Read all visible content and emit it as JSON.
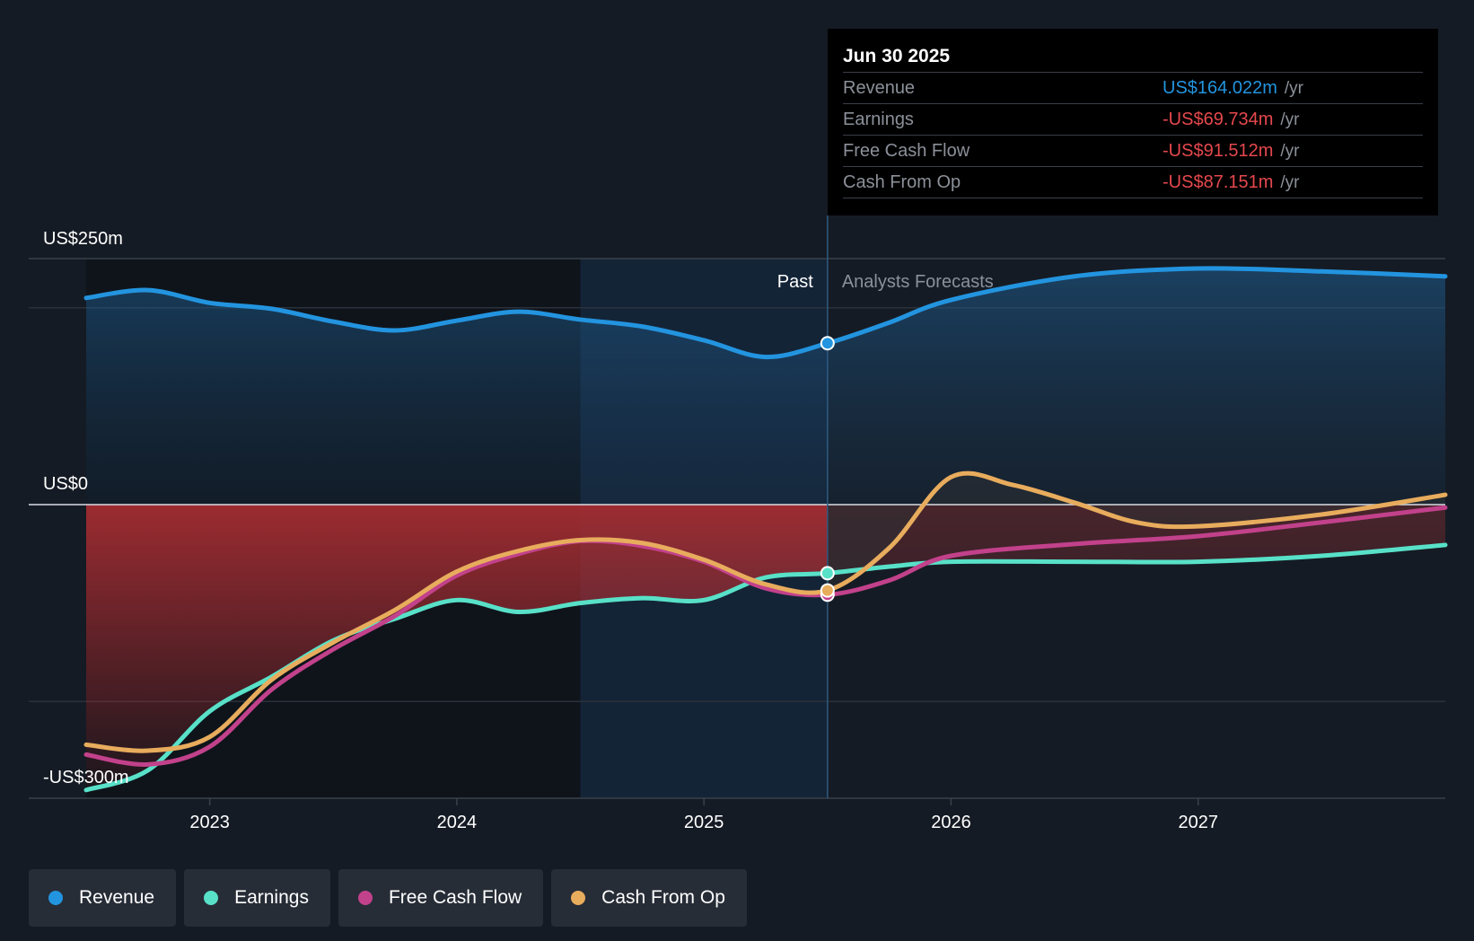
{
  "chart_data": {
    "type": "area",
    "y_axis": {
      "top_label": "US$250m",
      "zero_label": "US$0",
      "bottom_label": "-US$300m",
      "ylim": [
        -300,
        250
      ]
    },
    "x_ticks": [
      "2023",
      "2024",
      "2025",
      "2026",
      "2027"
    ],
    "x_range": [
      2022.5,
      2028.0
    ],
    "divider_date": 2025.5,
    "past_label": "Past",
    "forecast_label": "Analysts Forecasts",
    "series": [
      {
        "name": "Revenue",
        "color": "#2394df",
        "points": [
          [
            2022.5,
            210
          ],
          [
            2022.75,
            218
          ],
          [
            2023.0,
            205
          ],
          [
            2023.25,
            199
          ],
          [
            2023.5,
            186
          ],
          [
            2023.75,
            177
          ],
          [
            2024.0,
            187
          ],
          [
            2024.25,
            196
          ],
          [
            2024.5,
            188
          ],
          [
            2024.75,
            181
          ],
          [
            2025.0,
            167
          ],
          [
            2025.25,
            150
          ],
          [
            2025.5,
            164
          ],
          [
            2025.75,
            185
          ],
          [
            2026.0,
            208
          ],
          [
            2026.5,
            232
          ],
          [
            2027.0,
            240
          ],
          [
            2027.5,
            237
          ],
          [
            2028.0,
            232
          ]
        ]
      },
      {
        "name": "Earnings",
        "color": "#58e1c8",
        "points": [
          [
            2022.5,
            -290
          ],
          [
            2022.75,
            -270
          ],
          [
            2023.0,
            -210
          ],
          [
            2023.25,
            -175
          ],
          [
            2023.5,
            -138
          ],
          [
            2023.75,
            -116
          ],
          [
            2024.0,
            -97
          ],
          [
            2024.25,
            -109
          ],
          [
            2024.5,
            -100
          ],
          [
            2024.75,
            -95
          ],
          [
            2025.0,
            -97
          ],
          [
            2025.25,
            -74
          ],
          [
            2025.5,
            -69.7
          ],
          [
            2025.75,
            -63
          ],
          [
            2026.0,
            -58
          ],
          [
            2026.5,
            -58
          ],
          [
            2027.0,
            -58
          ],
          [
            2027.5,
            -52
          ],
          [
            2028.0,
            -41
          ]
        ]
      },
      {
        "name": "Free Cash Flow",
        "color": "#c2418b",
        "points": [
          [
            2022.5,
            -254
          ],
          [
            2022.75,
            -264
          ],
          [
            2023.0,
            -246
          ],
          [
            2023.25,
            -188
          ],
          [
            2023.5,
            -147
          ],
          [
            2023.75,
            -113
          ],
          [
            2024.0,
            -72
          ],
          [
            2024.25,
            -50
          ],
          [
            2024.5,
            -37
          ],
          [
            2024.75,
            -42
          ],
          [
            2025.0,
            -58
          ],
          [
            2025.25,
            -85
          ],
          [
            2025.5,
            -91.5
          ],
          [
            2025.75,
            -77
          ],
          [
            2026.0,
            -52
          ],
          [
            2026.5,
            -40
          ],
          [
            2027.0,
            -32
          ],
          [
            2027.5,
            -18
          ],
          [
            2028.0,
            -3
          ]
        ]
      },
      {
        "name": "Cash From Op",
        "color": "#e8ac5d",
        "points": [
          [
            2022.5,
            -244
          ],
          [
            2022.75,
            -250
          ],
          [
            2023.0,
            -236
          ],
          [
            2023.25,
            -178
          ],
          [
            2023.5,
            -140
          ],
          [
            2023.75,
            -107
          ],
          [
            2024.0,
            -68
          ],
          [
            2024.25,
            -47
          ],
          [
            2024.5,
            -36
          ],
          [
            2024.75,
            -39
          ],
          [
            2025.0,
            -56
          ],
          [
            2025.25,
            -81
          ],
          [
            2025.5,
            -87.2
          ],
          [
            2025.75,
            -44
          ],
          [
            2026.0,
            28
          ],
          [
            2026.25,
            20
          ],
          [
            2026.5,
            2
          ],
          [
            2026.75,
            -18
          ],
          [
            2027.0,
            -22
          ],
          [
            2027.5,
            -10
          ],
          [
            2028.0,
            10
          ]
        ]
      }
    ],
    "highlight_x": 2025.5,
    "tooltip": {
      "date": "Jun 30 2025",
      "rows": [
        {
          "label": "Revenue",
          "value": "US$164.022m",
          "unit": "/yr",
          "color": "#2394df"
        },
        {
          "label": "Earnings",
          "value": "-US$69.734m",
          "unit": "/yr",
          "color": "#e5484d"
        },
        {
          "label": "Free Cash Flow",
          "value": "-US$91.512m",
          "unit": "/yr",
          "color": "#e5484d"
        },
        {
          "label": "Cash From Op",
          "value": "-US$87.151m",
          "unit": "/yr",
          "color": "#e5484d"
        }
      ]
    },
    "legend": [
      {
        "label": "Revenue",
        "color": "#2394df"
      },
      {
        "label": "Earnings",
        "color": "#58e1c8"
      },
      {
        "label": "Free Cash Flow",
        "color": "#c2418b"
      },
      {
        "label": "Cash From Op",
        "color": "#e8ac5d"
      }
    ]
  }
}
